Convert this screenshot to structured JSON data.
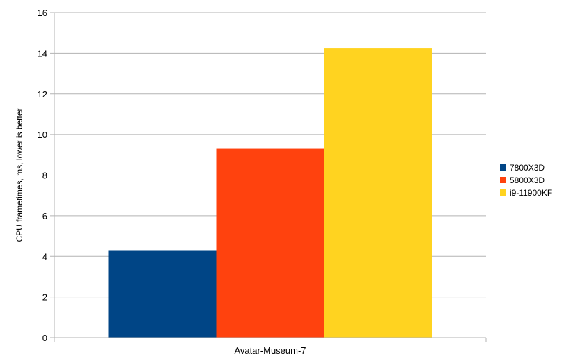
{
  "chart_data": {
    "type": "bar",
    "categories": [
      "Avatar-Museum-7"
    ],
    "series": [
      {
        "name": "7800X3D",
        "values": [
          4.3
        ],
        "color": "#004586"
      },
      {
        "name": "5800X3D",
        "values": [
          9.3
        ],
        "color": "#ff420e"
      },
      {
        "name": "i9-11900KF",
        "values": [
          14.25
        ],
        "color": "#ffd320"
      }
    ],
    "ylabel": "CPU frametimes, ms, lower is better",
    "ylim": [
      0,
      16
    ],
    "yticks": [
      0,
      2,
      4,
      6,
      8,
      10,
      12,
      14,
      16
    ],
    "grid": true,
    "legend_position": "right"
  }
}
